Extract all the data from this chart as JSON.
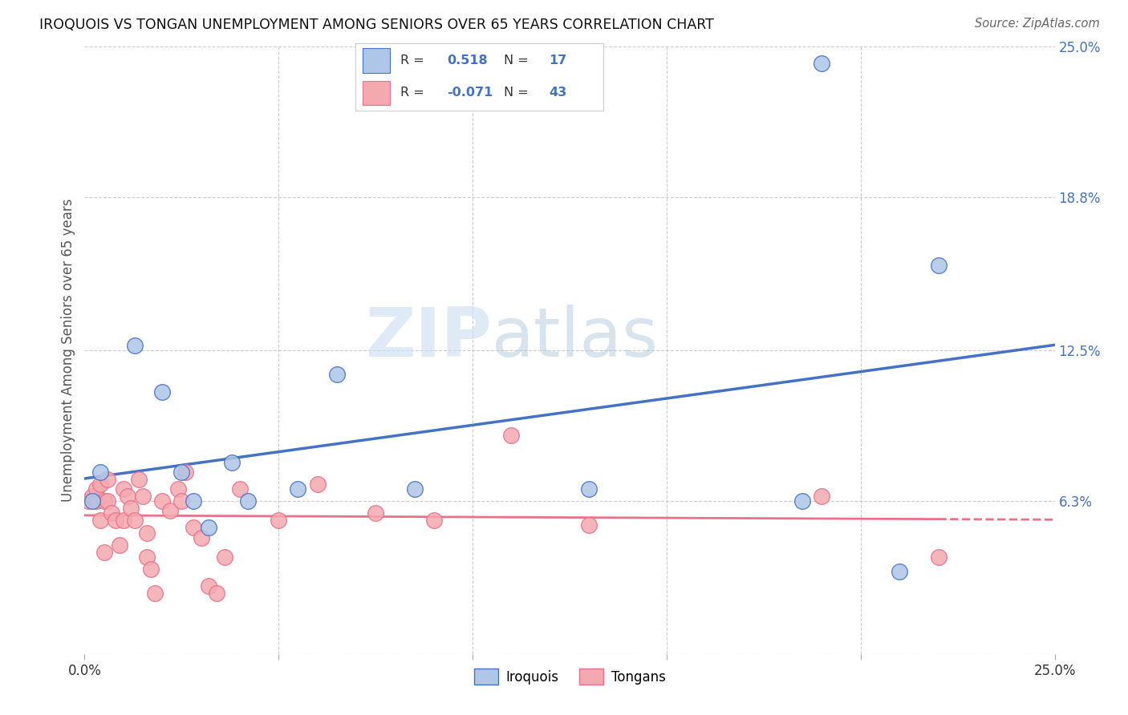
{
  "title": "IROQUOIS VS TONGAN UNEMPLOYMENT AMONG SENIORS OVER 65 YEARS CORRELATION CHART",
  "source": "Source: ZipAtlas.com",
  "ylabel": "Unemployment Among Seniors over 65 years",
  "xlim": [
    0.0,
    0.25
  ],
  "ylim": [
    0.0,
    0.25
  ],
  "xticks": [
    0.0,
    0.05,
    0.1,
    0.15,
    0.2,
    0.25
  ],
  "ytick_vals": [
    0.0,
    0.063,
    0.125,
    0.188,
    0.25
  ],
  "ytick_labels": [
    "",
    "6.3%",
    "12.5%",
    "18.8%",
    "25.0%"
  ],
  "xtick_labels": [
    "0.0%",
    "",
    "",
    "",
    "",
    "25.0%"
  ],
  "iroquois_x": [
    0.002,
    0.004,
    0.013,
    0.02,
    0.025,
    0.028,
    0.032,
    0.038,
    0.042,
    0.055,
    0.065,
    0.085,
    0.13,
    0.185,
    0.21,
    0.22,
    0.19
  ],
  "iroquois_y": [
    0.063,
    0.075,
    0.127,
    0.108,
    0.075,
    0.063,
    0.052,
    0.079,
    0.063,
    0.068,
    0.115,
    0.068,
    0.068,
    0.063,
    0.034,
    0.16,
    0.243
  ],
  "tongan_x": [
    0.001,
    0.002,
    0.003,
    0.003,
    0.004,
    0.004,
    0.005,
    0.005,
    0.006,
    0.006,
    0.007,
    0.008,
    0.009,
    0.01,
    0.01,
    0.011,
    0.012,
    0.013,
    0.014,
    0.015,
    0.016,
    0.016,
    0.017,
    0.018,
    0.02,
    0.022,
    0.024,
    0.025,
    0.026,
    0.028,
    0.03,
    0.032,
    0.034,
    0.036,
    0.04,
    0.05,
    0.06,
    0.075,
    0.09,
    0.11,
    0.13,
    0.19,
    0.22
  ],
  "tongan_y": [
    0.063,
    0.065,
    0.063,
    0.068,
    0.055,
    0.07,
    0.063,
    0.042,
    0.063,
    0.072,
    0.058,
    0.055,
    0.045,
    0.055,
    0.068,
    0.065,
    0.06,
    0.055,
    0.072,
    0.065,
    0.05,
    0.04,
    0.035,
    0.025,
    0.063,
    0.059,
    0.068,
    0.063,
    0.075,
    0.052,
    0.048,
    0.028,
    0.025,
    0.04,
    0.068,
    0.055,
    0.07,
    0.058,
    0.055,
    0.09,
    0.053,
    0.065,
    0.04
  ],
  "iroquois_color": "#aec6e8",
  "tongan_color": "#f4a9b0",
  "iroquois_edge_color": "#4472c4",
  "tongan_edge_color": "#e8728a",
  "iroquois_line_color": "#4472c4",
  "tongan_line_color": "#e8728a",
  "watermark_zip": "ZIP",
  "watermark_atlas": "atlas",
  "background_color": "#ffffff",
  "grid_color": "#cccccc",
  "legend_R1": "0.518",
  "legend_N1": "17",
  "legend_R2": "-0.071",
  "legend_N2": "43"
}
